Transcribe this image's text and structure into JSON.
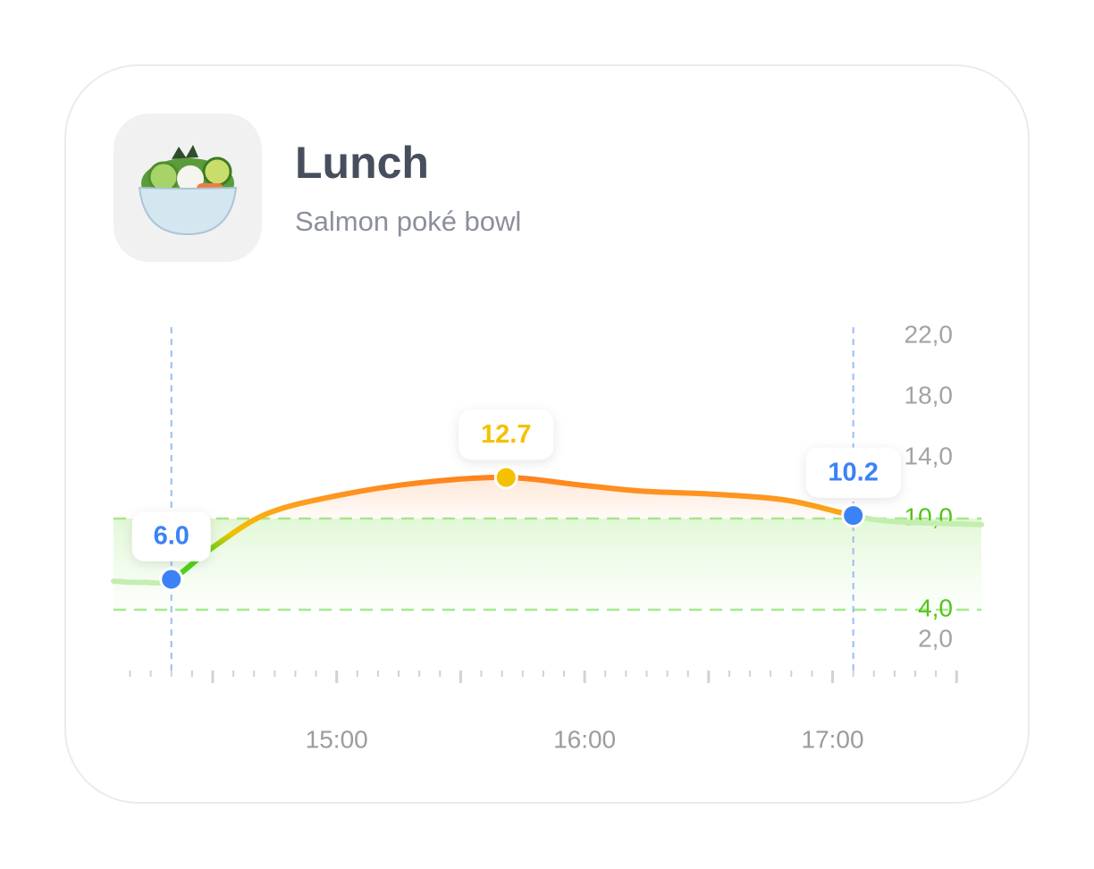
{
  "header": {
    "title": "Lunch",
    "subtitle": "Salmon poké bowl"
  },
  "chart_data": {
    "type": "line",
    "x": [
      846,
      853,
      860,
      870,
      883,
      900,
      920,
      941,
      959,
      974,
      991,
      1009,
      1025,
      1035,
      1056
    ],
    "values": [
      5.88,
      5.8,
      6,
      8.1,
      10.3,
      11.5,
      12.35,
      12.7,
      12.2,
      11.8,
      11.6,
      11.2,
      10.2,
      9.8,
      9.6
    ],
    "markers": {
      "x": [
        860,
        941,
        1025
      ],
      "values": [
        6,
        12.7,
        10.2
      ],
      "value_labels": [
        "6.0",
        "12.7",
        "10.2"
      ],
      "colors": [
        "#3b82f6",
        "#f5c000",
        "#3b82f6"
      ]
    },
    "target_range": [
      4,
      10
    ],
    "target_color": "#52c41a",
    "xlim": [
      846,
      1056
    ],
    "ylim": [
      2,
      22
    ],
    "xticks": [
      {
        "value": 900,
        "label": "15:00"
      },
      {
        "value": 960,
        "label": "16:00"
      },
      {
        "value": 1020,
        "label": "17:00"
      }
    ],
    "minor_xticks": [
      850,
      855,
      860,
      865,
      870,
      875,
      880,
      885,
      890,
      895,
      900,
      905,
      910,
      915,
      920,
      925,
      930,
      935,
      940,
      945,
      950,
      955,
      960,
      965,
      970,
      975,
      980,
      985,
      990,
      995,
      1000,
      1005,
      1010,
      1015,
      1020,
      1025,
      1030,
      1035,
      1040,
      1045,
      1050
    ],
    "yticks": [
      {
        "value": 22,
        "label": "22,0"
      },
      {
        "value": 18,
        "label": "18,0"
      },
      {
        "value": 14,
        "label": "14,0"
      },
      {
        "value": 10,
        "label": "10,0"
      },
      {
        "value": 4,
        "label": "4,0"
      },
      {
        "value": 2,
        "label": "2,0"
      }
    ]
  }
}
